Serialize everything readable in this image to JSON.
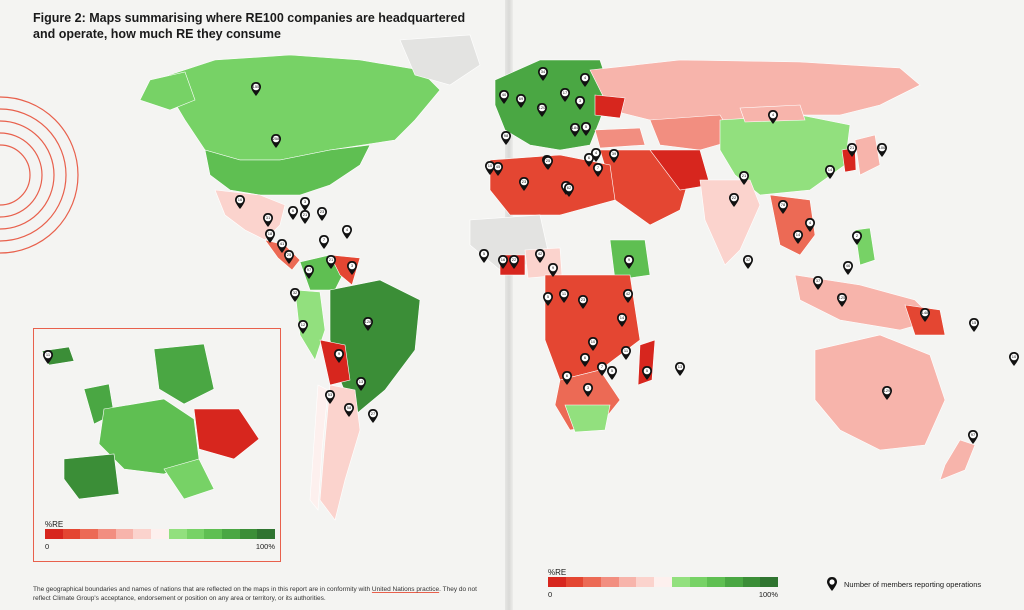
{
  "title": "Figure 2: Maps summarising where RE100 companies are headquartered and operate, how much RE they consume",
  "legend_left": {
    "label": "%RE",
    "min": "0",
    "max": "100%"
  },
  "legend_right": {
    "label": "%RE",
    "min": "0",
    "max": "100%"
  },
  "scale_colors": [
    "#d7261e",
    "#e44632",
    "#ec6a55",
    "#f28e80",
    "#f7b4ab",
    "#fbd3cd",
    "#fdf0ee",
    "#92e07e",
    "#77d266",
    "#5fbf52",
    "#4aa743",
    "#3b8e37",
    "#2f7430"
  ],
  "pin_legend": "Number of members reporting operations",
  "footnote": {
    "text1": "The geographical boundaries and names of nations that are reflected on the maps in this report are in conformity with ",
    "link": "United Nations practice",
    "text2": ". They do not reflect Climate Group's acceptance, endorsement or position on any area or territory, or its authorities."
  },
  "pins": [
    {
      "n": "11"
    },
    {
      "n": "155"
    },
    {
      "n": "258"
    },
    {
      "n": "16"
    },
    {
      "n": "23"
    },
    {
      "n": "3"
    },
    {
      "n": "6"
    },
    {
      "n": "21"
    },
    {
      "n": "4"
    },
    {
      "n": "31"
    },
    {
      "n": "18"
    },
    {
      "n": "41"
    },
    {
      "n": "25"
    },
    {
      "n": "7"
    },
    {
      "n": "21"
    },
    {
      "n": "3"
    },
    {
      "n": "97"
    },
    {
      "n": "32"
    },
    {
      "n": "12"
    },
    {
      "n": "128"
    },
    {
      "n": "9"
    },
    {
      "n": "13"
    },
    {
      "n": "53"
    },
    {
      "n": "58"
    },
    {
      "n": "27"
    },
    {
      "n": "40"
    },
    {
      "n": "69"
    },
    {
      "n": "34"
    },
    {
      "n": "17"
    },
    {
      "n": "5"
    },
    {
      "n": "4"
    },
    {
      "n": "3"
    },
    {
      "n": "184"
    },
    {
      "n": "120"
    },
    {
      "n": "4"
    },
    {
      "n": "98"
    },
    {
      "n": "45"
    },
    {
      "n": "23"
    },
    {
      "n": "3"
    },
    {
      "n": "26"
    },
    {
      "n": "25"
    },
    {
      "n": "6"
    },
    {
      "n": "39"
    },
    {
      "n": "7"
    },
    {
      "n": "62"
    },
    {
      "n": "10"
    },
    {
      "n": "5"
    },
    {
      "n": "16"
    },
    {
      "n": "22"
    },
    {
      "n": "42"
    },
    {
      "n": "9"
    },
    {
      "n": "9"
    },
    {
      "n": "5"
    },
    {
      "n": "11"
    },
    {
      "n": "23"
    },
    {
      "n": "42"
    },
    {
      "n": "14"
    },
    {
      "n": "6"
    },
    {
      "n": "11"
    },
    {
      "n": "6"
    },
    {
      "n": "7"
    },
    {
      "n": "10"
    },
    {
      "n": "5"
    },
    {
      "n": "3"
    },
    {
      "n": "5"
    },
    {
      "n": "22"
    },
    {
      "n": "13"
    },
    {
      "n": "32"
    },
    {
      "n": "46"
    },
    {
      "n": "14"
    },
    {
      "n": "106"
    },
    {
      "n": "21"
    },
    {
      "n": "14"
    },
    {
      "n": "37"
    },
    {
      "n": "125"
    },
    {
      "n": "2"
    },
    {
      "n": "15"
    },
    {
      "n": "10"
    },
    {
      "n": "148"
    },
    {
      "n": "129"
    },
    {
      "n": "97"
    },
    {
      "n": "78"
    },
    {
      "n": "4"
    },
    {
      "n": "4"
    },
    {
      "n": "21"
    }
  ]
}
